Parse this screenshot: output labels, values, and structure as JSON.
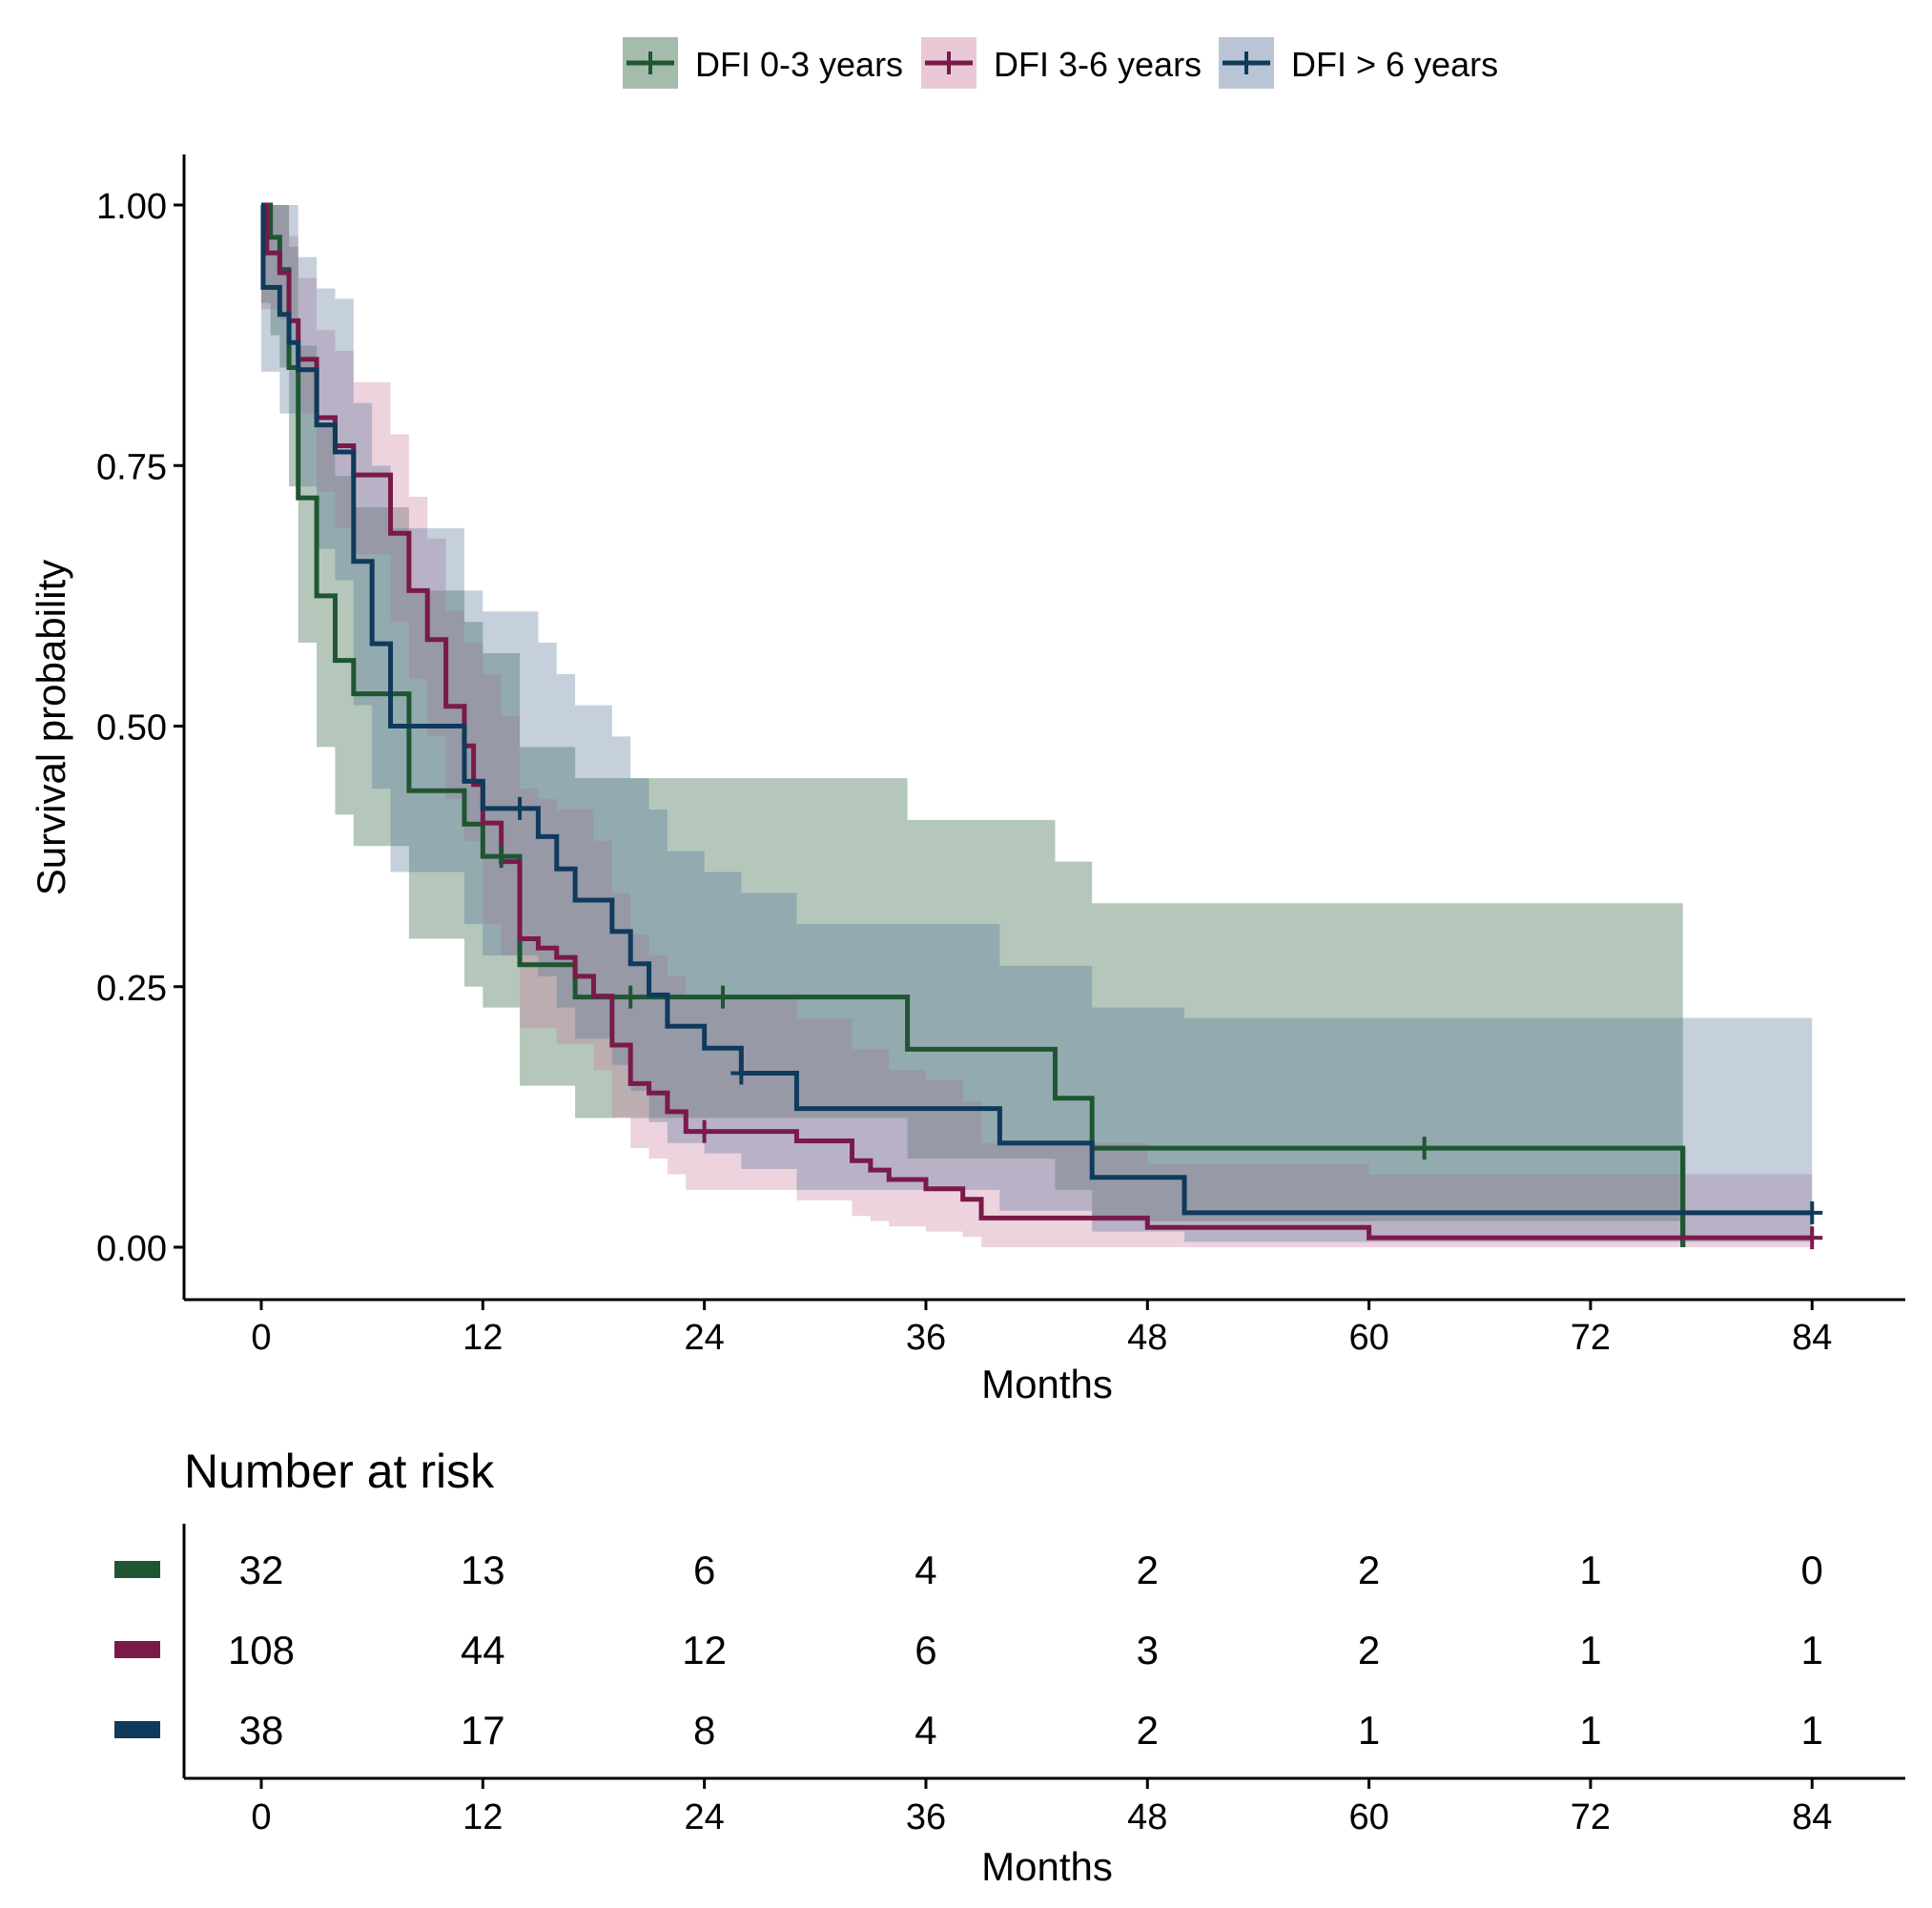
{
  "chart_data": {
    "type": "line",
    "subtype": "kaplan-meier",
    "legend_position": "top",
    "xlabel": "Months",
    "ylabel": "Survival probability",
    "x_ticks": [
      0,
      12,
      24,
      36,
      48,
      60,
      72,
      84
    ],
    "y_ticks": [
      0,
      0.25,
      0.5,
      0.75,
      1.0
    ],
    "y_tick_labels": [
      "0.00",
      "0.25",
      "0.50",
      "0.75",
      "1.00"
    ],
    "xlim": [
      -4.2,
      89.3
    ],
    "ylim": [
      -0.05,
      1.05
    ],
    "grid": false,
    "series": [
      {
        "name": "DFI 0-3 years",
        "color": "#1e5631",
        "fill": "#1e5631",
        "steps": [
          [
            0,
            1.0
          ],
          [
            0.5,
            0.969
          ],
          [
            1,
            0.938
          ],
          [
            1.5,
            0.844
          ],
          [
            2,
            0.719
          ],
          [
            3,
            0.625
          ],
          [
            4,
            0.563
          ],
          [
            5,
            0.531
          ],
          [
            8,
            0.438
          ],
          [
            11,
            0.406
          ],
          [
            12,
            0.375
          ],
          [
            14,
            0.271
          ],
          [
            17,
            0.24
          ],
          [
            35,
            0.19
          ],
          [
            43,
            0.143
          ],
          [
            45,
            0.095
          ],
          [
            77,
            0.0
          ]
        ],
        "end": 77,
        "lower": [
          [
            0,
            0.906
          ],
          [
            0.5,
            0.875
          ],
          [
            1,
            0.844
          ],
          [
            1.5,
            0.73
          ],
          [
            2,
            0.58
          ],
          [
            3,
            0.48
          ],
          [
            4,
            0.415
          ],
          [
            5,
            0.385
          ],
          [
            8,
            0.296
          ],
          [
            11,
            0.25
          ],
          [
            12,
            0.23
          ],
          [
            14,
            0.155
          ],
          [
            17,
            0.124
          ],
          [
            35,
            0.085
          ],
          [
            43,
            0.055
          ],
          [
            45,
            0.025
          ],
          [
            77,
            0.0
          ]
        ],
        "upper": [
          [
            0,
            1.0
          ],
          [
            1.5,
            0.96
          ],
          [
            2,
            0.865
          ],
          [
            3,
            0.79
          ],
          [
            4,
            0.74
          ],
          [
            5,
            0.71
          ],
          [
            8,
            0.63
          ],
          [
            11,
            0.6
          ],
          [
            12,
            0.57
          ],
          [
            14,
            0.48
          ],
          [
            17,
            0.45
          ],
          [
            35,
            0.41
          ],
          [
            43,
            0.37
          ],
          [
            45,
            0.33
          ],
          [
            77,
            0.33
          ]
        ],
        "censor": [
          [
            13,
            0.375
          ],
          [
            20,
            0.24
          ],
          [
            25,
            0.24
          ],
          [
            63,
            0.095
          ]
        ]
      },
      {
        "name": "DFI 3-6 years",
        "color": "#7a1a4a",
        "fill": "#c9799c",
        "steps": [
          [
            0,
            1.0
          ],
          [
            0.3,
            0.954
          ],
          [
            1,
            0.935
          ],
          [
            1.5,
            0.889
          ],
          [
            2,
            0.852
          ],
          [
            3,
            0.796
          ],
          [
            4,
            0.769
          ],
          [
            5,
            0.741
          ],
          [
            7,
            0.685
          ],
          [
            8,
            0.63
          ],
          [
            9,
            0.583
          ],
          [
            10,
            0.519
          ],
          [
            11,
            0.481
          ],
          [
            11.5,
            0.444
          ],
          [
            12,
            0.407
          ],
          [
            13,
            0.37
          ],
          [
            14,
            0.296
          ],
          [
            15,
            0.287
          ],
          [
            16,
            0.278
          ],
          [
            17,
            0.26
          ],
          [
            18,
            0.241
          ],
          [
            19,
            0.194
          ],
          [
            20,
            0.157
          ],
          [
            21,
            0.148
          ],
          [
            22,
            0.13
          ],
          [
            23,
            0.111
          ],
          [
            29,
            0.102
          ],
          [
            32,
            0.083
          ],
          [
            33,
            0.074
          ],
          [
            34,
            0.065
          ],
          [
            36,
            0.056
          ],
          [
            38,
            0.046
          ],
          [
            39,
            0.028
          ],
          [
            48,
            0.019
          ],
          [
            60,
            0.009
          ]
        ],
        "end": 84,
        "lower": [
          [
            0,
            0.9
          ],
          [
            1,
            0.89
          ],
          [
            2,
            0.8
          ],
          [
            3,
            0.725
          ],
          [
            4,
            0.69
          ],
          [
            5,
            0.665
          ],
          [
            7,
            0.6
          ],
          [
            8,
            0.545
          ],
          [
            9,
            0.49
          ],
          [
            10,
            0.43
          ],
          [
            11,
            0.39
          ],
          [
            12,
            0.31
          ],
          [
            13,
            0.28
          ],
          [
            14,
            0.21
          ],
          [
            16,
            0.195
          ],
          [
            18,
            0.17
          ],
          [
            19,
            0.125
          ],
          [
            20,
            0.095
          ],
          [
            21,
            0.085
          ],
          [
            22,
            0.07
          ],
          [
            23,
            0.055
          ],
          [
            25,
            0.055
          ],
          [
            29,
            0.045
          ],
          [
            32,
            0.03
          ],
          [
            33,
            0.025
          ],
          [
            34,
            0.02
          ],
          [
            36,
            0.015
          ],
          [
            38,
            0.01
          ],
          [
            39,
            0.0
          ]
        ],
        "upper": [
          [
            0,
            1.0
          ],
          [
            1.5,
            0.97
          ],
          [
            2,
            0.93
          ],
          [
            3,
            0.88
          ],
          [
            4,
            0.86
          ],
          [
            5,
            0.83
          ],
          [
            7,
            0.78
          ],
          [
            8,
            0.72
          ],
          [
            9,
            0.68
          ],
          [
            10,
            0.61
          ],
          [
            11,
            0.58
          ],
          [
            12,
            0.55
          ],
          [
            13,
            0.51
          ],
          [
            14,
            0.44
          ],
          [
            15,
            0.43
          ],
          [
            16,
            0.42
          ],
          [
            18,
            0.39
          ],
          [
            19,
            0.34
          ],
          [
            20,
            0.3
          ],
          [
            21,
            0.28
          ],
          [
            22,
            0.26
          ],
          [
            23,
            0.24
          ],
          [
            29,
            0.22
          ],
          [
            32,
            0.19
          ],
          [
            34,
            0.17
          ],
          [
            36,
            0.16
          ],
          [
            38,
            0.14
          ],
          [
            39,
            0.1
          ],
          [
            48,
            0.08
          ],
          [
            60,
            0.07
          ],
          [
            84,
            0.07
          ]
        ],
        "censor": [
          [
            24,
            0.111
          ],
          [
            84,
            0.009
          ]
        ]
      },
      {
        "name": "DFI > 6 years",
        "color": "#0f3a5c",
        "fill": "#4f6f95",
        "steps": [
          [
            0,
            1.0
          ],
          [
            0.1,
            0.921
          ],
          [
            1,
            0.895
          ],
          [
            1.5,
            0.868
          ],
          [
            2,
            0.842
          ],
          [
            3,
            0.789
          ],
          [
            4,
            0.763
          ],
          [
            5,
            0.658
          ],
          [
            6,
            0.579
          ],
          [
            7,
            0.5
          ],
          [
            11,
            0.447
          ],
          [
            12,
            0.421
          ],
          [
            15,
            0.394
          ],
          [
            16,
            0.363
          ],
          [
            17,
            0.333
          ],
          [
            19,
            0.303
          ],
          [
            20,
            0.272
          ],
          [
            21,
            0.242
          ],
          [
            22,
            0.212
          ],
          [
            24,
            0.191
          ],
          [
            26,
            0.167
          ],
          [
            29,
            0.133
          ],
          [
            40,
            0.1
          ],
          [
            45,
            0.067
          ],
          [
            50,
            0.033
          ]
        ],
        "end": 84,
        "lower": [
          [
            0,
            0.84
          ],
          [
            1,
            0.8
          ],
          [
            2,
            0.73
          ],
          [
            3,
            0.67
          ],
          [
            4,
            0.64
          ],
          [
            5,
            0.52
          ],
          [
            6,
            0.44
          ],
          [
            7,
            0.36
          ],
          [
            11,
            0.31
          ],
          [
            12,
            0.28
          ],
          [
            15,
            0.26
          ],
          [
            16,
            0.23
          ],
          [
            17,
            0.2
          ],
          [
            19,
            0.175
          ],
          [
            20,
            0.15
          ],
          [
            21,
            0.12
          ],
          [
            22,
            0.1
          ],
          [
            24,
            0.09
          ],
          [
            26,
            0.075
          ],
          [
            29,
            0.055
          ],
          [
            40,
            0.035
          ],
          [
            45,
            0.015
          ],
          [
            50,
            0.005
          ]
        ],
        "upper": [
          [
            0,
            1.0
          ],
          [
            2,
            0.95
          ],
          [
            3,
            0.92
          ],
          [
            4,
            0.91
          ],
          [
            5,
            0.81
          ],
          [
            6,
            0.75
          ],
          [
            7,
            0.69
          ],
          [
            11,
            0.63
          ],
          [
            12,
            0.61
          ],
          [
            15,
            0.58
          ],
          [
            16,
            0.55
          ],
          [
            17,
            0.52
          ],
          [
            19,
            0.49
          ],
          [
            20,
            0.45
          ],
          [
            21,
            0.42
          ],
          [
            22,
            0.38
          ],
          [
            24,
            0.36
          ],
          [
            26,
            0.34
          ],
          [
            29,
            0.31
          ],
          [
            40,
            0.27
          ],
          [
            45,
            0.23
          ],
          [
            50,
            0.22
          ],
          [
            84,
            0.22
          ]
        ],
        "censor": [
          [
            14,
            0.421
          ],
          [
            26,
            0.167
          ],
          [
            84,
            0.033
          ]
        ]
      }
    ],
    "risk_table": {
      "title": "Number at risk",
      "xlabel": "Months",
      "time_points": [
        0,
        12,
        24,
        36,
        48,
        60,
        72,
        84
      ],
      "rows": [
        {
          "name": "DFI 0-3 years",
          "color": "#1e5631",
          "counts": [
            32,
            13,
            6,
            4,
            2,
            2,
            1,
            0
          ]
        },
        {
          "name": "DFI 3-6 years",
          "color": "#7a1a4a",
          "counts": [
            108,
            44,
            12,
            6,
            3,
            2,
            1,
            1
          ]
        },
        {
          "name": "DFI > 6 years",
          "color": "#0f3a5c",
          "counts": [
            38,
            17,
            8,
            4,
            2,
            1,
            1,
            1
          ]
        }
      ]
    }
  }
}
